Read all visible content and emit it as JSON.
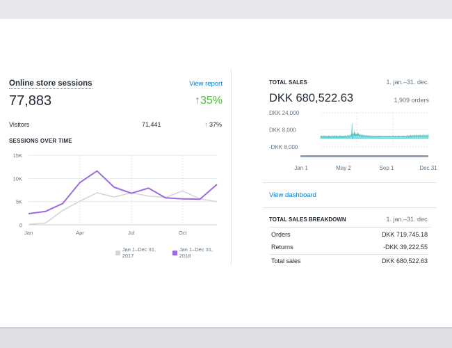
{
  "sessions_card": {
    "title": "Online store sessions",
    "view_report_label": "View report",
    "total": "77,883",
    "growth": "35%",
    "growth_arrow": "↑",
    "visitors_label": "Visitors",
    "visitors_value": "71,441",
    "visitors_growth": "37%",
    "visitors_growth_arrow": "↑",
    "chart_title": "SESSIONS OVER TIME",
    "legend": [
      {
        "label": "Jan 1–Dec 31, 2017",
        "color": "#d4d6d9"
      },
      {
        "label": "Jan 1–Dec 31, 2018",
        "color": "#9c6ade"
      }
    ]
  },
  "total_sales_card": {
    "title": "TOTAL SALES",
    "date_range": "1. jan.–31. dec.",
    "amount": "DKK 680,522.63",
    "orders": "1,909 orders",
    "view_dashboard_label": "View dashboard"
  },
  "breakdown_card": {
    "title": "TOTAL SALES BREAKDOWN",
    "date_range": "1. jan.–31. dec.",
    "rows": [
      {
        "label": "Orders",
        "value": "DKK 719,745.18"
      },
      {
        "label": "Returns",
        "value": "-DKK 39,222.55"
      },
      {
        "label": "Total sales",
        "value": "DKK 680,522.63"
      }
    ]
  },
  "chart_data": [
    {
      "type": "line",
      "title": "SESSIONS OVER TIME",
      "xlabel": "",
      "ylabel": "",
      "x_tick_labels": [
        "Jan",
        "Apr",
        "Jul",
        "Oct"
      ],
      "x_tick_index": [
        0,
        3,
        6,
        9
      ],
      "y_ticks": [
        0,
        5000,
        10000,
        15000
      ],
      "y_tick_labels": [
        "0",
        "5K",
        "10K",
        "15K"
      ],
      "ylim": [
        0,
        15000
      ],
      "grid": true,
      "legend_position": "bottom-right",
      "series": [
        {
          "name": "Jan 1–Dec 31, 2017",
          "color": "#d4d6d9",
          "values": [
            100,
            400,
            3100,
            5100,
            6900,
            6000,
            6900,
            6200,
            5900,
            7300,
            5600,
            5000
          ]
        },
        {
          "name": "Jan 1–Dec 31, 2018",
          "color": "#9c6ade",
          "values": [
            2400,
            2900,
            4600,
            9100,
            11600,
            8100,
            6800,
            7900,
            5800,
            5600,
            5500,
            8700
          ]
        }
      ]
    },
    {
      "type": "area",
      "title": "TOTAL SALES",
      "xlabel": "",
      "ylabel": "",
      "x_tick_labels": [
        "Jan 1",
        "May 2",
        "Sep 1",
        "Dec 31"
      ],
      "x_tick_days": [
        0,
        122,
        244,
        364
      ],
      "y_tick_labels": [
        "DKK 24,000",
        "DKK 8,000",
        "-DKK 8,000"
      ],
      "y_ticks": [
        24000,
        8000,
        -8000
      ],
      "ylim": [
        -8000,
        24000
      ],
      "grid": true,
      "series": [
        {
          "name": "Total sales",
          "color": "#47c1bf",
          "values": [
            2300,
            1200,
            900,
            2600,
            1800,
            700,
            1500,
            2100,
            900,
            1300,
            2800,
            1100,
            600,
            1700,
            2400,
            1000,
            1900,
            800,
            1500,
            2600,
            1200,
            900,
            2100,
            1400,
            700,
            1800,
            2300,
            1000,
            1600,
            2900,
            1100,
            800,
            2000,
            1500,
            900,
            2400,
            1200,
            700,
            1900,
            2600,
            1300,
            1000,
            1700,
            2200,
            800,
            1500,
            2800,
            1100,
            1900,
            600,
            1400,
            2500,
            1200,
            2100,
            900,
            1700,
            2700,
            1300,
            800,
            2000,
            1600,
            1100,
            2300,
            900,
            1800,
            2600,
            1400,
            700,
            2200,
            1500,
            1000,
            2400,
            1300,
            1900,
            800,
            2100,
            1600,
            900,
            2500,
            1200,
            1700,
            2200,
            1000,
            1400,
            2800,
            1100,
            1900,
            800,
            1500,
            2300,
            1200,
            1700,
            3200,
            1300,
            2100,
            1500,
            2900,
            1800,
            1200,
            2400,
            3600,
            1600,
            2200,
            2800,
            3400,
            1700,
            14000,
            -1200,
            2600,
            5200,
            3100,
            1800,
            4400,
            2300,
            6800,
            3600,
            2100,
            5400,
            2900,
            1700,
            4200,
            3300,
            2400,
            3800,
            1900,
            5600,
            3100,
            2200,
            4700,
            2700,
            2000,
            3500,
            2600,
            1800,
            4100,
            2300,
            1600,
            3000,
            2500,
            1900,
            3600,
            2200,
            1500,
            2800,
            2100,
            1700,
            3300,
            1800,
            1400,
            2600,
            2200,
            1600,
            3000,
            1900,
            1300,
            2400,
            1800,
            2700,
            1500,
            1200,
            2900,
            2000,
            1600,
            2300,
            1400,
            2500,
            1700,
            1100,
            2200,
            1900,
            1500,
            2600,
            1300,
            2100,
            1800,
            1200,
            2400,
            1600,
            2000,
            1400,
            1100,
            2700,
            1500,
            1900,
            1300,
            2300,
            1700,
            1000,
            2100,
            1600,
            1400,
            2500,
            1200,
            1800,
            1500,
            2200,
            1100,
            1900,
            1700,
            1300,
            2600,
            1400,
            2000,
            1200,
            1800,
            1600,
            2300,
            1100,
            1500,
            2100,
            1300,
            1900,
            1700,
            1200,
            2400,
            1500,
            1800,
            1300,
            2000,
            1600,
            1100,
            2200,
            1400,
            1900,
            1600,
            1200,
            2500,
            1300,
            1700,
            1500,
            2100,
            1200,
            1800,
            1400,
            2300,
            1600,
            1100,
            1900,
            1500,
            2000,
            1300,
            1700,
            2400,
            1200,
            1600,
            1400,
            2200,
            1800,
            1100,
            2000,
            1500,
            1700,
            1300,
            2600,
            1400,
            1900,
            1200,
            1800,
            1600,
            2100,
            1300,
            1500,
            2300,
            1100,
            1900,
            1700,
            1400,
            2500,
            1200,
            1800,
            1600,
            2000,
            1300,
            1500,
            2200,
            1400,
            1700,
            1100,
            2700,
            1500,
            1900,
            1300,
            2100,
            1600,
            1200,
            2400,
            1400,
            1800,
            1500,
            2000,
            1300,
            1700,
            3100,
            1500,
            2200,
            1800,
            1400,
            2900,
            1600,
            2000,
            1300,
            2500,
            1700,
            1500,
            3300,
            1800,
            2300,
            1400,
            2700,
            1900,
            1600,
            3000,
            2100,
            1500,
            2400,
            1800,
            3400,
            1700,
            2200,
            1500,
            2800,
            2000,
            1600,
            3600,
            1900,
            2300,
            1700,
            2600,
            2100,
            1500,
            3200,
            1800,
            2400,
            1600,
            2900,
            2000,
            1700,
            3500,
            1900,
            2300,
            1600,
            2700,
            2200,
            1800,
            3100,
            2000,
            1600,
            2500,
            1900,
            3800,
            2100,
            1700,
            2600,
            2000,
            1800,
            3300,
            1900,
            2400,
            1600,
            2800,
            2200,
            1700,
            4100,
            2000,
            2500
          ]
        }
      ]
    }
  ]
}
